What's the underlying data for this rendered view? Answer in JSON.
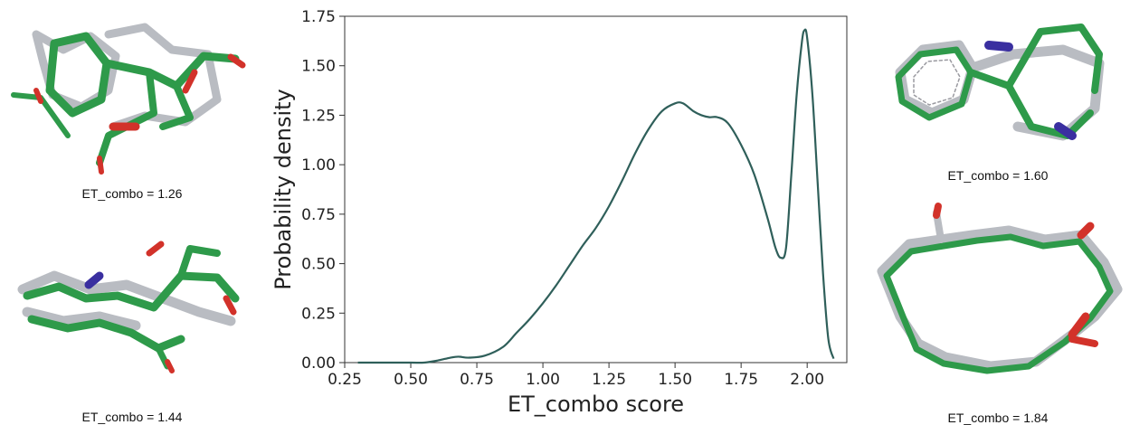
{
  "chart_data": {
    "type": "line",
    "xlabel": "ET_combo score",
    "ylabel": "Probability density",
    "xlim": [
      0.25,
      2.15
    ],
    "ylim": [
      0.0,
      1.75
    ],
    "xticks": [
      "0.25",
      "0.50",
      "0.75",
      "1.00",
      "1.25",
      "1.50",
      "1.75",
      "2.00"
    ],
    "yticks": [
      "0.00",
      "0.25",
      "0.50",
      "0.75",
      "1.00",
      "1.25",
      "1.50",
      "1.75"
    ],
    "grid": false,
    "line_color": "#2f5f5a",
    "series": [
      {
        "x": [
          0.3,
          0.4,
          0.5,
          0.55,
          0.6,
          0.65,
          0.68,
          0.72,
          0.78,
          0.85,
          0.9,
          0.95,
          1.0,
          1.05,
          1.1,
          1.15,
          1.2,
          1.25,
          1.3,
          1.35,
          1.4,
          1.45,
          1.5,
          1.53,
          1.57,
          1.6,
          1.63,
          1.66,
          1.7,
          1.75,
          1.8,
          1.85,
          1.88,
          1.9,
          1.92,
          1.94,
          1.96,
          1.98,
          1.99,
          2.0,
          2.02,
          2.04,
          2.06,
          2.08,
          2.1
        ],
        "y": [
          0.0,
          0.0,
          0.0,
          0.0,
          0.01,
          0.025,
          0.03,
          0.025,
          0.035,
          0.08,
          0.15,
          0.22,
          0.3,
          0.39,
          0.49,
          0.59,
          0.68,
          0.79,
          0.92,
          1.06,
          1.18,
          1.27,
          1.31,
          1.31,
          1.27,
          1.25,
          1.24,
          1.24,
          1.21,
          1.1,
          0.95,
          0.73,
          0.58,
          0.53,
          0.58,
          0.95,
          1.35,
          1.62,
          1.68,
          1.64,
          1.35,
          0.9,
          0.45,
          0.12,
          0.02
        ]
      }
    ]
  },
  "captions": {
    "top_left": "ET_combo = 1.26",
    "bottom_left": "ET_combo = 1.44",
    "top_right": "ET_combo = 1.60",
    "bottom_right": "ET_combo = 1.84"
  },
  "colors": {
    "green": "#2e9a4a",
    "gray": "#b9bcc2",
    "red": "#d2322a",
    "blue": "#3a2fa0"
  }
}
